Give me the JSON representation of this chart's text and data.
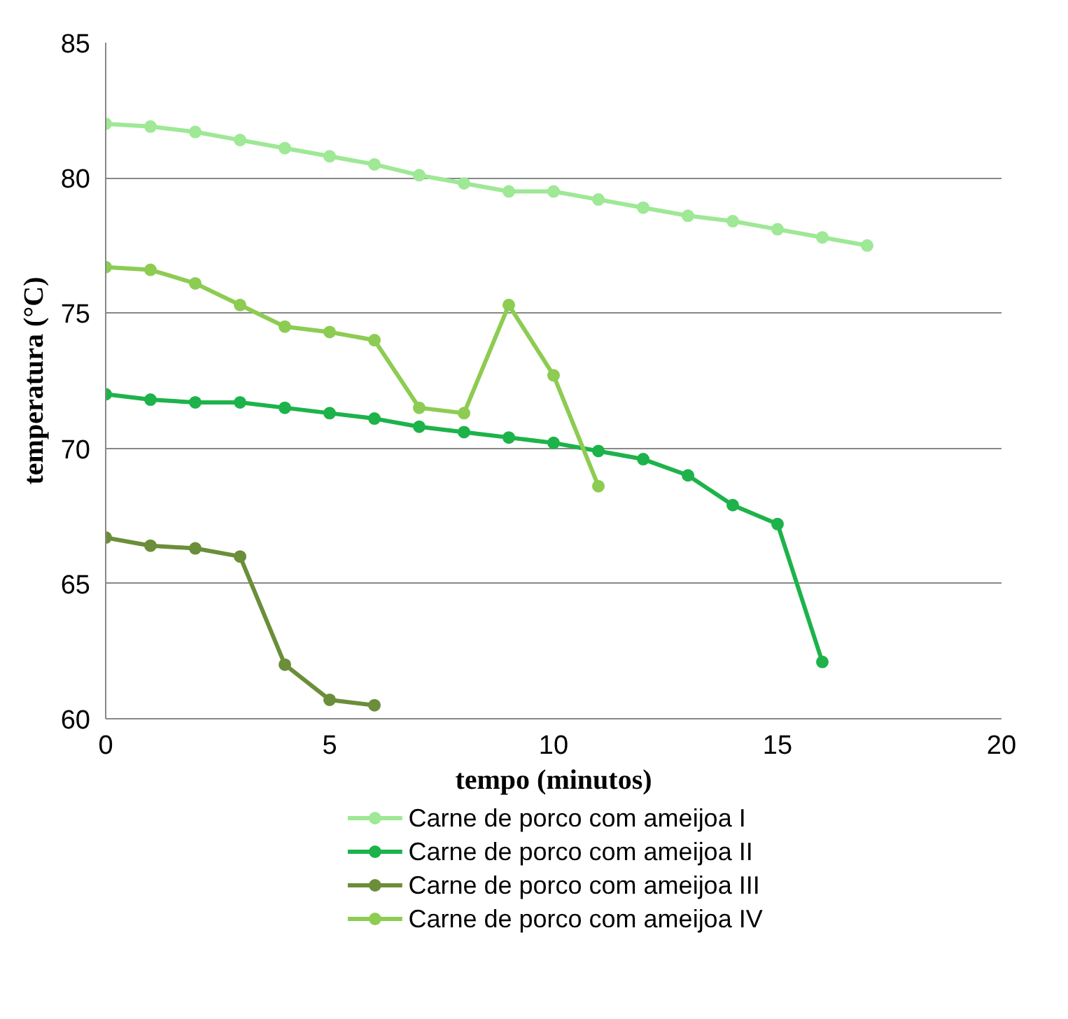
{
  "chart_data": {
    "type": "line",
    "xlabel": "tempo (minutos)",
    "ylabel": "temperatura (°C)",
    "xlim": [
      0,
      20
    ],
    "xticks": [
      0,
      5,
      10,
      15,
      20
    ],
    "ylim": [
      60,
      85
    ],
    "yticks": [
      60,
      65,
      70,
      75,
      80,
      85
    ],
    "grid": "y",
    "legend": "bottom",
    "marker": "circle",
    "line_style": "solid",
    "series": [
      {
        "name": "Carne de porco com ameijoa I",
        "color": "#9ee896",
        "x": [
          0,
          1,
          2,
          3,
          4,
          5,
          6,
          7,
          8,
          9,
          10,
          11,
          12,
          13,
          14,
          15,
          16,
          17
        ],
        "values": [
          82.0,
          81.9,
          81.7,
          81.4,
          81.1,
          80.8,
          80.5,
          80.1,
          79.8,
          79.5,
          79.5,
          79.2,
          78.9,
          78.6,
          78.4,
          78.1,
          77.8,
          77.5
        ]
      },
      {
        "name": "Carne de porco com ameijoa II",
        "color": "#1db34a",
        "x": [
          0,
          1,
          2,
          3,
          4,
          5,
          6,
          7,
          8,
          9,
          10,
          11,
          12,
          13,
          14,
          15,
          16
        ],
        "values": [
          72.0,
          71.8,
          71.7,
          71.7,
          71.5,
          71.3,
          71.1,
          70.8,
          70.6,
          70.4,
          70.2,
          69.9,
          69.6,
          69.0,
          67.9,
          67.2,
          62.1
        ]
      },
      {
        "name": "Carne de porco com ameijoa III",
        "color": "#6b8e3a",
        "x": [
          0,
          1,
          2,
          3,
          4,
          5,
          6
        ],
        "values": [
          66.7,
          66.4,
          66.3,
          66.0,
          62.0,
          60.7,
          60.5
        ]
      },
      {
        "name": "Carne de porco com ameijoa IV",
        "color": "#8dcc52",
        "x": [
          0,
          1,
          2,
          3,
          4,
          5,
          6,
          7,
          8,
          9,
          10,
          11
        ],
        "values": [
          76.7,
          76.6,
          76.1,
          75.3,
          74.5,
          74.3,
          74.0,
          71.5,
          71.3,
          75.3,
          72.7,
          68.6
        ]
      }
    ]
  }
}
